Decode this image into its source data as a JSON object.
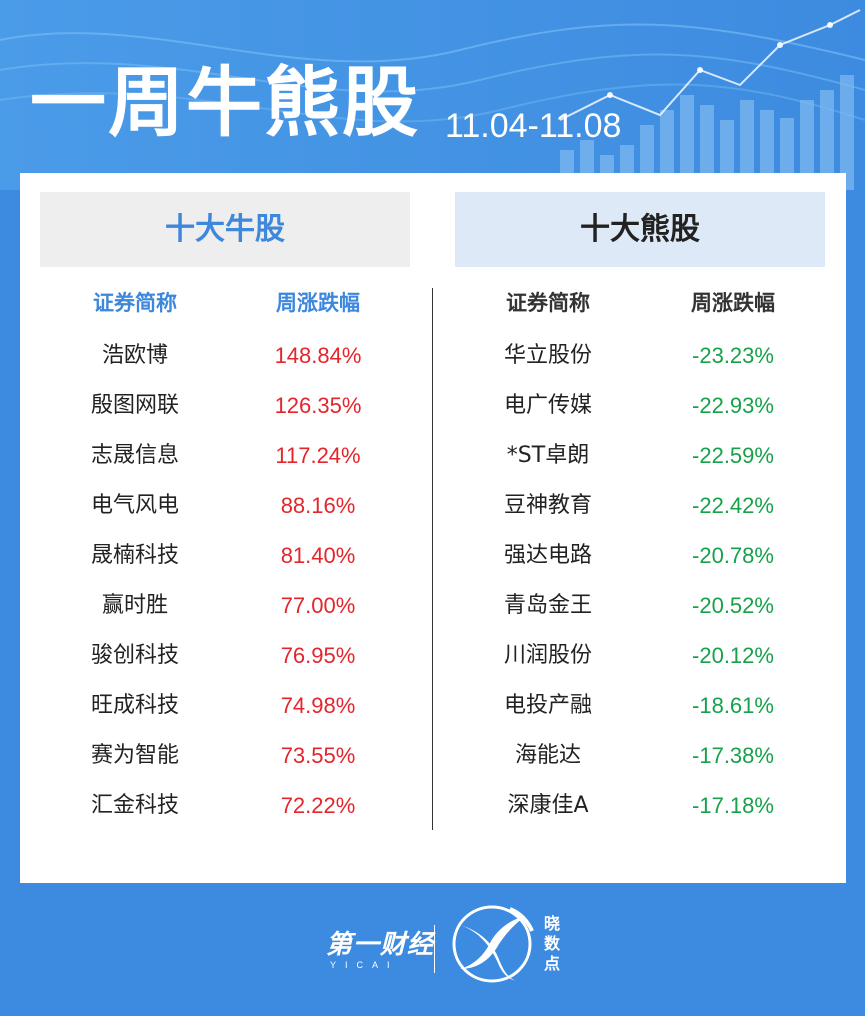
{
  "header": {
    "title": "一周牛熊股",
    "date_range": "11.04-11.08"
  },
  "bull": {
    "title": "十大牛股",
    "col_name": "证券简称",
    "col_change": "周涨跌幅",
    "rows": [
      {
        "name": "浩欧博",
        "change": "148.84%"
      },
      {
        "name": "殷图网联",
        "change": "126.35%"
      },
      {
        "name": "志晟信息",
        "change": "117.24%"
      },
      {
        "name": "电气风电",
        "change": "88.16%"
      },
      {
        "name": "晟楠科技",
        "change": "81.40%"
      },
      {
        "name": "赢时胜",
        "change": "77.00%"
      },
      {
        "name": "骏创科技",
        "change": "76.95%"
      },
      {
        "name": "旺成科技",
        "change": "74.98%"
      },
      {
        "name": "赛为智能",
        "change": "73.55%"
      },
      {
        "name": "汇金科技",
        "change": "72.22%"
      }
    ]
  },
  "bear": {
    "title": "十大熊股",
    "col_name": "证券简称",
    "col_change": "周涨跌幅",
    "rows": [
      {
        "name": "华立股份",
        "change": "-23.23%"
      },
      {
        "name": "电广传媒",
        "change": "-22.93%"
      },
      {
        "name": "*ST卓朗",
        "change": "-22.59%"
      },
      {
        "name": "豆神教育",
        "change": "-22.42%"
      },
      {
        "name": "强达电路",
        "change": "-20.78%"
      },
      {
        "name": "青岛金王",
        "change": "-20.52%"
      },
      {
        "name": "川润股份",
        "change": "-20.12%"
      },
      {
        "name": "电投产融",
        "change": "-18.61%"
      },
      {
        "name": "海能达",
        "change": "-17.38%"
      },
      {
        "name": "深康佳A",
        "change": "-17.18%"
      }
    ]
  },
  "footer": {
    "yicai_logo": "第一财经",
    "yicai_sub": "YICAI",
    "xsd_text": "晓数点"
  },
  "colors": {
    "background": "#3d8be0",
    "bull_accent": "#3d87dc",
    "up": "#e4252b",
    "down": "#17a24a"
  },
  "icons": [
    "bar-chart-decoration",
    "yicai-logo",
    "xiaoshudian-logo"
  ]
}
